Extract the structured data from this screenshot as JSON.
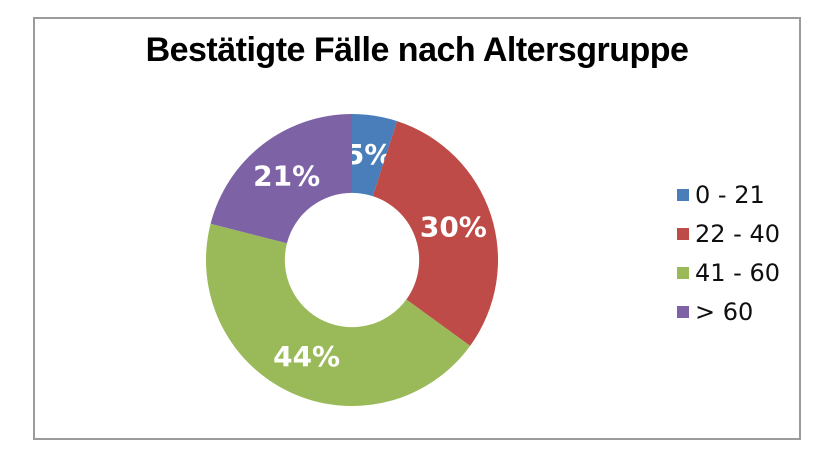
{
  "frame": {
    "border_color": "#9b9b9b",
    "background": "#ffffff"
  },
  "chart_data": {
    "type": "pie",
    "variant": "donut",
    "title": "Bestätigte Fälle nach Altersgruppe",
    "inner_radius_ratio": 0.46,
    "start_angle_deg": 0,
    "direction": "clockwise",
    "legend_position": "right",
    "data_label_color": "#ffffff",
    "slices": [
      {
        "label": "0 - 21",
        "value_pct": 5,
        "data_label": "5%",
        "color": "#4a7ebb"
      },
      {
        "label": "22 - 40",
        "value_pct": 30,
        "data_label": "30%",
        "color": "#be4b48"
      },
      {
        "label": "41 - 60",
        "value_pct": 44,
        "data_label": "44%",
        "color": "#9aba59"
      },
      {
        "label": "> 60",
        "value_pct": 21,
        "data_label": "21%",
        "color": "#7d63a5"
      }
    ]
  }
}
